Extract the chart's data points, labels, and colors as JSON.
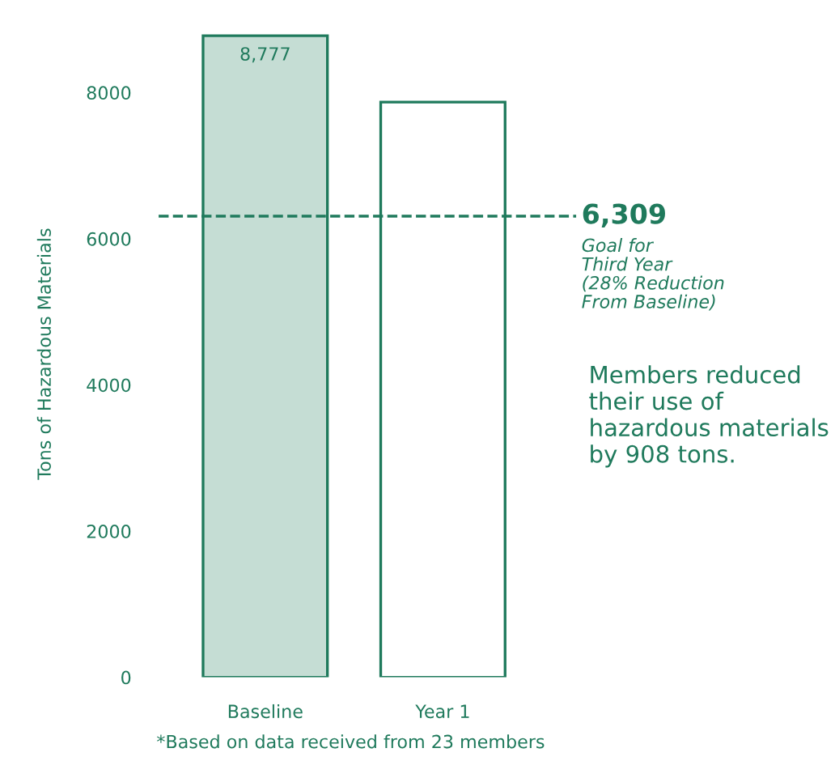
{
  "chart_data": {
    "type": "bar",
    "ylabel": "Tons of Hazardous Materials",
    "categories": [
      "Baseline",
      "Year 1"
    ],
    "values": [
      8777,
      7870
    ],
    "colors": [
      "#c5ddd4",
      "#ffffff"
    ],
    "value_labels": [
      "8,777",
      null
    ],
    "ylim": [
      0,
      8850
    ],
    "yticks": [
      0,
      2000,
      4000,
      6000,
      8000
    ],
    "grid": false,
    "legend": false,
    "ref_lines": [
      {
        "axis": "y",
        "value": 6309,
        "label": "6,309",
        "color": "#1f7a5c",
        "line_style": "dashed"
      }
    ],
    "annotations": [
      "Goal for\nThird Year\n(28% Reduction\nFrom Baseline)",
      "Members reduced their use of hazardous materials by 908 tons.",
      "*Based on data received from 23 members"
    ]
  }
}
